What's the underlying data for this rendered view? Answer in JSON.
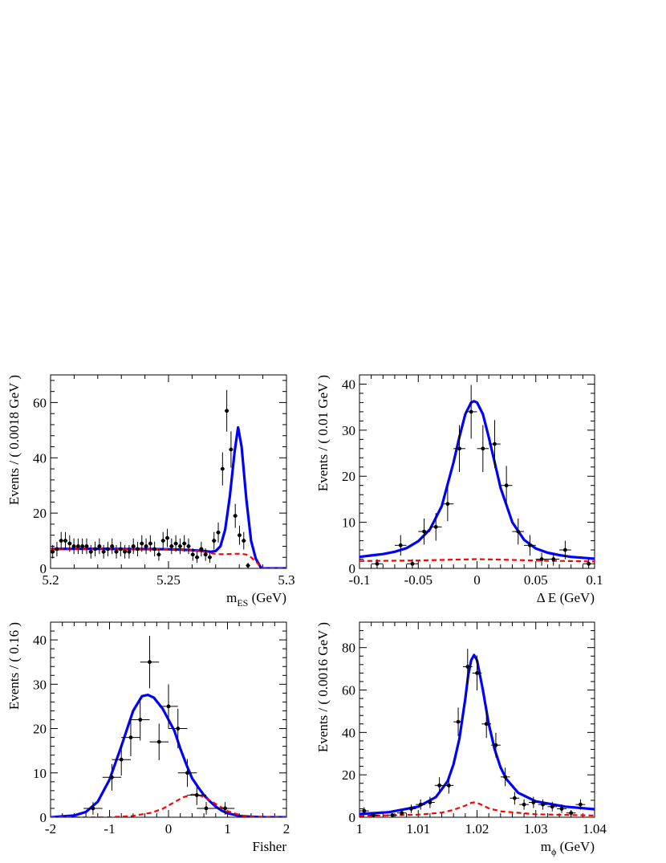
{
  "chart_data": [
    {
      "type": "scatter",
      "xlabel": "m",
      "xlabel_sub": "ES",
      "xlabel_unit": " (GeV)",
      "ylabel": "Events / ( 0.0018 GeV )",
      "xlim": [
        5.2,
        5.3
      ],
      "ylim": [
        0,
        70
      ],
      "xticks": [
        5.2,
        5.25,
        5.3
      ],
      "xtick_labels": [
        "5.2",
        "5.25",
        "5.3"
      ],
      "yticks": [
        0,
        20,
        40,
        60
      ],
      "ytick_labels": [
        "0",
        "20",
        "40",
        "60"
      ],
      "grid": false,
      "series": [
        {
          "style": "data-points-with-errors",
          "x": [
            5.2009,
            5.2027,
            5.2045,
            5.2063,
            5.2081,
            5.2099,
            5.2117,
            5.2135,
            5.2153,
            5.2171,
            5.2189,
            5.2207,
            5.2225,
            5.2243,
            5.2261,
            5.2279,
            5.2297,
            5.2315,
            5.2333,
            5.2351,
            5.2369,
            5.2387,
            5.2405,
            5.2423,
            5.2441,
            5.2459,
            5.2477,
            5.2495,
            5.2513,
            5.2531,
            5.2549,
            5.2567,
            5.2585,
            5.2603,
            5.2621,
            5.2639,
            5.2657,
            5.2675,
            5.2693,
            5.2711,
            5.2729,
            5.2747,
            5.2765,
            5.2783,
            5.2801,
            5.2819,
            5.2837,
            5.2855,
            5.2873,
            5.2891
          ],
          "y": [
            6,
            7,
            10,
            10,
            9,
            8,
            8,
            8,
            8,
            6,
            7,
            8,
            6,
            7,
            8,
            6,
            7,
            6,
            6,
            8,
            7,
            9,
            8,
            9,
            7,
            5,
            10,
            11,
            8,
            9,
            8,
            9,
            8,
            5,
            4,
            7,
            5,
            4,
            10,
            13,
            36,
            57,
            43,
            19,
            12,
            10,
            1,
            0,
            0,
            0
          ]
        },
        {
          "style": "total-fit",
          "color": "#0000ff",
          "x": [
            5.2,
            5.21,
            5.22,
            5.23,
            5.24,
            5.25,
            5.255,
            5.26,
            5.265,
            5.268,
            5.27,
            5.272,
            5.274,
            5.276,
            5.278,
            5.2795,
            5.281,
            5.283,
            5.285,
            5.287,
            5.289,
            5.29,
            5.3
          ],
          "y": [
            7,
            7.1,
            7.1,
            7,
            7,
            6.9,
            6.8,
            6.6,
            6.3,
            6,
            6.3,
            8,
            14,
            26,
            42,
            51,
            44,
            25,
            10,
            3.5,
            0.5,
            0,
            0
          ]
        },
        {
          "style": "background-fit",
          "color": "#ff0000",
          "x": [
            5.2,
            5.21,
            5.22,
            5.23,
            5.24,
            5.25,
            5.255,
            5.26,
            5.265,
            5.268,
            5.27,
            5.272,
            5.274,
            5.276,
            5.278,
            5.2795,
            5.281,
            5.283,
            5.285,
            5.287,
            5.289,
            5.29,
            5.3
          ],
          "y": [
            7,
            7.1,
            7.1,
            7,
            7,
            6.9,
            6.8,
            6.5,
            6,
            5.5,
            5.2,
            5.1,
            5.1,
            5.2,
            5.3,
            5.3,
            5.3,
            5,
            4,
            2.5,
            0.8,
            0,
            0
          ]
        }
      ]
    },
    {
      "type": "scatter",
      "xlabel": "Δ E",
      "xlabel_sub": "",
      "xlabel_unit": " (GeV)",
      "ylabel": "Events / ( 0.01 GeV )",
      "xlim": [
        -0.1,
        0.1
      ],
      "ylim": [
        0,
        42
      ],
      "xticks": [
        -0.1,
        -0.05,
        0,
        0.05,
        0.1
      ],
      "xtick_labels": [
        "-0.1",
        "-0.05",
        "0",
        "0.05",
        "0.1"
      ],
      "yticks": [
        0,
        10,
        20,
        30,
        40
      ],
      "ytick_labels": [
        "0",
        "10",
        "20",
        "30",
        "40"
      ],
      "grid": false,
      "series": [
        {
          "style": "data-points-with-errors",
          "x": [
            -0.095,
            -0.085,
            -0.075,
            -0.065,
            -0.055,
            -0.045,
            -0.035,
            -0.025,
            -0.015,
            -0.005,
            0.005,
            0.015,
            0.025,
            0.035,
            0.045,
            0.055,
            0.065,
            0.075,
            0.085,
            0.095
          ],
          "y": [
            0,
            1,
            0,
            5,
            1,
            8,
            9,
            14,
            26,
            34,
            26,
            27,
            18,
            8,
            5,
            2,
            2,
            4,
            0,
            1
          ]
        },
        {
          "style": "total-fit",
          "color": "#0000ff",
          "x": [
            -0.1,
            -0.09,
            -0.08,
            -0.07,
            -0.06,
            -0.05,
            -0.04,
            -0.03,
            -0.02,
            -0.015,
            -0.01,
            -0.005,
            -0.0025,
            0,
            0.005,
            0.01,
            0.015,
            0.02,
            0.03,
            0.04,
            0.05,
            0.06,
            0.07,
            0.08,
            0.09,
            0.1
          ],
          "y": [
            2.5,
            2.8,
            3.1,
            3.6,
            4.4,
            5.9,
            8.5,
            13.5,
            23,
            28.5,
            33.5,
            36,
            36.3,
            36,
            33.5,
            28.5,
            23,
            17.5,
            10,
            6.2,
            4.3,
            3.4,
            2.9,
            2.5,
            2.3,
            2.1
          ]
        },
        {
          "style": "background-fit",
          "color": "#ff0000",
          "x": [
            -0.1,
            -0.05,
            -0.02,
            0,
            0.02,
            0.05,
            0.1
          ],
          "y": [
            1.6,
            1.7,
            1.9,
            2,
            1.9,
            1.7,
            1.5
          ]
        }
      ]
    },
    {
      "type": "scatter",
      "xlabel": "Fisher",
      "xlabel_sub": "",
      "xlabel_unit": "",
      "ylabel": "Events / ( 0.16 )",
      "xlim": [
        -2,
        2
      ],
      "ylim": [
        0,
        44
      ],
      "xticks": [
        -2,
        -1,
        0,
        1,
        2
      ],
      "xtick_labels": [
        "-2",
        "-1",
        "0",
        "1",
        "2"
      ],
      "yticks": [
        0,
        10,
        20,
        30,
        40
      ],
      "ytick_labels": [
        "0",
        "10",
        "20",
        "30",
        "40"
      ],
      "grid": false,
      "series": [
        {
          "style": "data-points-with-errors",
          "x": [
            -1.28,
            -0.96,
            -0.8,
            -0.64,
            -0.48,
            -0.32,
            -0.16,
            0,
            0.16,
            0.32,
            0.48,
            0.64,
            0.96
          ],
          "y": [
            2,
            9,
            13,
            18,
            22,
            35,
            17,
            25,
            20,
            10,
            5,
            2,
            2
          ]
        },
        {
          "style": "total-fit",
          "color": "#0000ff",
          "x": [
            -2,
            -1.6,
            -1.4,
            -1.2,
            -1.0,
            -0.8,
            -0.6,
            -0.45,
            -0.35,
            -0.25,
            -0.1,
            0.0,
            0.1,
            0.2,
            0.3,
            0.4,
            0.5,
            0.6,
            0.7,
            0.8,
            0.9,
            1.0,
            1.2,
            1.4,
            1.6,
            2
          ],
          "y": [
            0,
            0.4,
            1.2,
            3.5,
            8.5,
            16,
            24,
            27.3,
            27.6,
            27,
            24.5,
            22,
            19.5,
            15.5,
            12,
            8.8,
            6.8,
            5,
            3.6,
            2.4,
            1.5,
            0.9,
            0.3,
            0.1,
            0,
            0
          ]
        },
        {
          "style": "background-fit",
          "color": "#ff0000",
          "x": [
            -2,
            -1,
            -0.6,
            -0.3,
            -0.1,
            0.1,
            0.25,
            0.4,
            0.5,
            0.6,
            0.8,
            1.0,
            1.2,
            1.4,
            2
          ],
          "y": [
            0,
            0,
            0.3,
            1.0,
            1.9,
            3.4,
            4.5,
            5.1,
            5.0,
            4.6,
            3.0,
            1.4,
            0.5,
            0.1,
            0
          ]
        }
      ]
    },
    {
      "type": "scatter",
      "xlabel": "m",
      "xlabel_sub": "ϕ",
      "xlabel_unit": " (GeV)",
      "ylabel": "Events / ( 0.0016 GeV )",
      "xlim": [
        1.0,
        1.04
      ],
      "ylim": [
        0,
        92
      ],
      "xticks": [
        1.0,
        1.01,
        1.02,
        1.03,
        1.04
      ],
      "xtick_labels": [
        "1",
        "1.01",
        "1.02",
        "1.03",
        "1.04"
      ],
      "yticks": [
        0,
        20,
        40,
        60,
        80
      ],
      "ytick_labels": [
        "0",
        "20",
        "40",
        "60",
        "80"
      ],
      "grid": false,
      "series": [
        {
          "style": "data-points-with-errors",
          "x": [
            1.0008,
            1.0024,
            1.004,
            1.0056,
            1.0072,
            1.0088,
            1.0104,
            1.012,
            1.0136,
            1.0152,
            1.0168,
            1.0184,
            1.02,
            1.0216,
            1.0232,
            1.0248,
            1.0264,
            1.028,
            1.0296,
            1.0312,
            1.0328,
            1.0344,
            1.036,
            1.0376,
            1.0392
          ],
          "y": [
            3,
            1,
            0,
            1,
            2,
            4,
            6,
            7,
            15,
            15,
            45,
            71,
            68,
            44,
            34,
            19,
            9,
            6,
            7,
            6,
            5,
            4,
            2,
            6,
            0
          ]
        },
        {
          "style": "total-fit",
          "color": "#0000ff",
          "x": [
            1.0,
            1.005,
            1.01,
            1.013,
            1.015,
            1.016,
            1.017,
            1.018,
            1.0185,
            1.019,
            1.0195,
            1.02,
            1.021,
            1.022,
            1.023,
            1.024,
            1.025,
            1.027,
            1.03,
            1.035,
            1.04
          ],
          "y": [
            1.5,
            2.4,
            5,
            9.5,
            17,
            25,
            37,
            56,
            67,
            74,
            76.5,
            74,
            60,
            44,
            32,
            23.5,
            18,
            11.5,
            7.5,
            5,
            3.8
          ]
        },
        {
          "style": "background-fit",
          "color": "#ff0000",
          "x": [
            1.0,
            1.01,
            1.014,
            1.016,
            1.018,
            1.019,
            1.0195,
            1.02,
            1.021,
            1.022,
            1.024,
            1.03,
            1.04
          ],
          "y": [
            0.6,
            1.2,
            2.2,
            3.5,
            5.5,
            6.8,
            7.0,
            6.8,
            5.6,
            4.2,
            2.8,
            1.4,
            0.8
          ]
        }
      ]
    }
  ]
}
